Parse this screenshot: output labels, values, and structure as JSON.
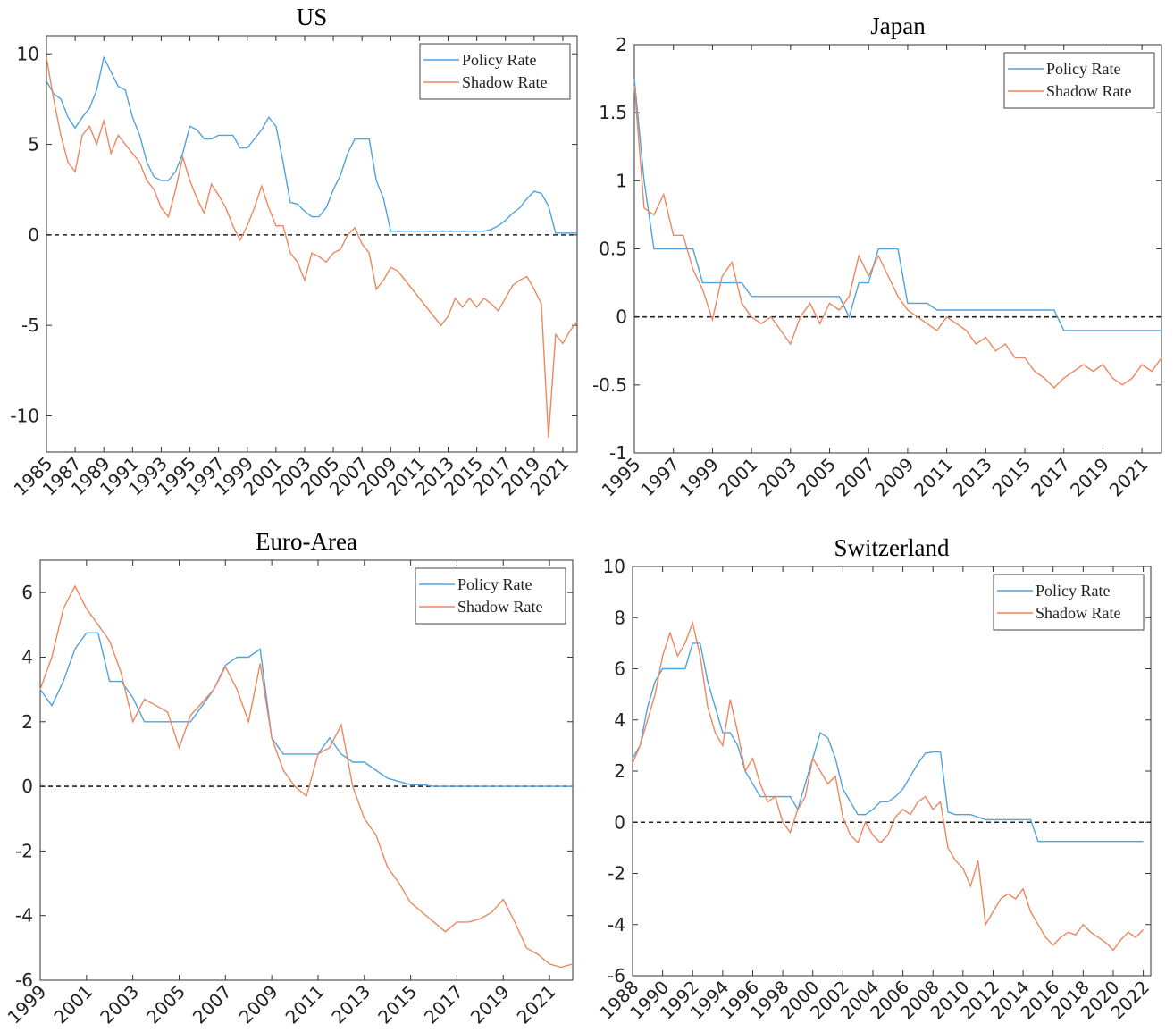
{
  "chart_data": [
    {
      "type": "line",
      "title": "US",
      "x": [
        1985,
        1985.5,
        1986,
        1986.5,
        1987,
        1987.5,
        1988,
        1988.5,
        1989,
        1989.5,
        1990,
        1990.5,
        1991,
        1991.5,
        1992,
        1992.5,
        1993,
        1993.5,
        1994,
        1994.5,
        1995,
        1995.5,
        1996,
        1996.5,
        1997,
        1997.5,
        1998,
        1998.5,
        1999,
        1999.5,
        2000,
        2000.5,
        2001,
        2001.5,
        2002,
        2002.5,
        2003,
        2003.5,
        2004,
        2004.5,
        2005,
        2005.5,
        2006,
        2006.5,
        2007,
        2007.5,
        2008,
        2008.5,
        2009,
        2009.5,
        2010,
        2010.5,
        2011,
        2011.5,
        2012,
        2012.5,
        2013,
        2013.5,
        2014,
        2014.5,
        2015,
        2015.5,
        2016,
        2016.5,
        2017,
        2017.5,
        2018,
        2018.5,
        2019,
        2019.5,
        2020,
        2020.5,
        2021,
        2021.5,
        2022
      ],
      "series": [
        {
          "name": "Policy Rate",
          "color": "#4fa3dc",
          "values": [
            8.5,
            7.8,
            7.5,
            6.5,
            5.9,
            6.5,
            7.0,
            8.0,
            9.8,
            9.0,
            8.2,
            8.0,
            6.5,
            5.5,
            4.0,
            3.2,
            3.0,
            3.0,
            3.5,
            4.5,
            6.0,
            5.8,
            5.3,
            5.3,
            5.5,
            5.5,
            5.5,
            4.8,
            4.8,
            5.3,
            5.8,
            6.5,
            6.0,
            4.0,
            1.8,
            1.7,
            1.3,
            1.0,
            1.0,
            1.5,
            2.5,
            3.3,
            4.5,
            5.3,
            5.3,
            5.3,
            3.0,
            2.0,
            0.2,
            0.2,
            0.2,
            0.2,
            0.2,
            0.2,
            0.2,
            0.2,
            0.2,
            0.2,
            0.2,
            0.2,
            0.2,
            0.2,
            0.3,
            0.5,
            0.8,
            1.2,
            1.5,
            2.0,
            2.4,
            2.3,
            1.6,
            0.1,
            0.1,
            0.1,
            0.1
          ]
        },
        {
          "name": "Shadow Rate",
          "color": "#ec8760",
          "values": [
            9.8,
            7.5,
            5.5,
            4.0,
            3.5,
            5.5,
            6.0,
            5.0,
            6.3,
            4.5,
            5.5,
            5.0,
            4.5,
            4.0,
            3.0,
            2.5,
            1.5,
            1.0,
            2.5,
            4.3,
            3.0,
            2.0,
            1.2,
            2.8,
            2.2,
            1.5,
            0.5,
            -0.3,
            0.5,
            1.5,
            2.7,
            1.5,
            0.5,
            0.5,
            -1.0,
            -1.5,
            -2.5,
            -1.0,
            -1.2,
            -1.5,
            -1.0,
            -0.8,
            0.0,
            0.4,
            -0.5,
            -1.0,
            -3.0,
            -2.5,
            -1.8,
            -2.0,
            -2.5,
            -3.0,
            -3.5,
            -4.0,
            -4.5,
            -5.0,
            -4.5,
            -3.5,
            -4.0,
            -3.5,
            -4.0,
            -3.5,
            -3.8,
            -4.2,
            -3.5,
            -2.8,
            -2.5,
            -2.3,
            -3.0,
            -3.8,
            -11.2,
            -5.5,
            -6.0,
            -5.3,
            -4.8
          ]
        }
      ],
      "xlim": [
        1985,
        2022
      ],
      "xticks": [
        1985,
        1987,
        1989,
        1991,
        1993,
        1995,
        1997,
        1999,
        2001,
        2003,
        2005,
        2007,
        2009,
        2011,
        2013,
        2015,
        2017,
        2019,
        2021
      ],
      "ylim": [
        -12,
        11
      ],
      "yticks": [
        -10,
        -5,
        0,
        5,
        10
      ],
      "reference_line": 0,
      "legend": "upper right"
    },
    {
      "type": "line",
      "title": "Japan",
      "x": [
        1995,
        1995.5,
        1996,
        1996.5,
        1997,
        1997.5,
        1998,
        1998.5,
        1999,
        1999.5,
        2000,
        2000.5,
        2001,
        2001.5,
        2002,
        2002.5,
        2003,
        2003.5,
        2004,
        2004.5,
        2005,
        2005.5,
        2006,
        2006.5,
        2007,
        2007.5,
        2008,
        2008.5,
        2009,
        2009.5,
        2010,
        2010.5,
        2011,
        2011.5,
        2012,
        2012.5,
        2013,
        2013.5,
        2014,
        2014.5,
        2015,
        2015.5,
        2016,
        2016.5,
        2017,
        2017.5,
        2018,
        2018.5,
        2019,
        2019.5,
        2020,
        2020.5,
        2021,
        2021.5,
        2022
      ],
      "series": [
        {
          "name": "Policy Rate",
          "color": "#4fa3dc",
          "values": [
            1.75,
            1.0,
            0.5,
            0.5,
            0.5,
            0.5,
            0.5,
            0.25,
            0.25,
            0.25,
            0.25,
            0.25,
            0.15,
            0.15,
            0.15,
            0.15,
            0.15,
            0.15,
            0.15,
            0.15,
            0.15,
            0.15,
            0.0,
            0.25,
            0.25,
            0.5,
            0.5,
            0.5,
            0.1,
            0.1,
            0.1,
            0.05,
            0.05,
            0.05,
            0.05,
            0.05,
            0.05,
            0.05,
            0.05,
            0.05,
            0.05,
            0.05,
            0.05,
            0.05,
            -0.1,
            -0.1,
            -0.1,
            -0.1,
            -0.1,
            -0.1,
            -0.1,
            -0.1,
            -0.1,
            -0.1,
            -0.1
          ]
        },
        {
          "name": "Shadow Rate",
          "color": "#ec8760",
          "values": [
            1.7,
            0.8,
            0.75,
            0.9,
            0.6,
            0.6,
            0.35,
            0.2,
            -0.02,
            0.3,
            0.4,
            0.1,
            0.0,
            -0.05,
            0.0,
            -0.1,
            -0.2,
            0.0,
            0.1,
            -0.05,
            0.1,
            0.05,
            0.15,
            0.45,
            0.3,
            0.45,
            0.3,
            0.15,
            0.05,
            0.0,
            -0.05,
            -0.1,
            0.0,
            -0.05,
            -0.1,
            -0.2,
            -0.15,
            -0.25,
            -0.2,
            -0.3,
            -0.3,
            -0.4,
            -0.45,
            -0.52,
            -0.45,
            -0.4,
            -0.35,
            -0.4,
            -0.35,
            -0.45,
            -0.5,
            -0.45,
            -0.35,
            -0.4,
            -0.3
          ]
        }
      ],
      "xlim": [
        1995,
        2022
      ],
      "xticks": [
        1995,
        1997,
        1999,
        2001,
        2003,
        2005,
        2007,
        2009,
        2011,
        2013,
        2015,
        2017,
        2019,
        2021
      ],
      "ylim": [
        -1,
        2
      ],
      "yticks": [
        -1,
        -0.5,
        0,
        0.5,
        1,
        1.5,
        2
      ],
      "reference_line": 0,
      "legend": "upper right"
    },
    {
      "type": "line",
      "title": "Euro-Area",
      "x": [
        1999,
        1999.5,
        2000,
        2000.5,
        2001,
        2001.5,
        2002,
        2002.5,
        2003,
        2003.5,
        2004,
        2004.5,
        2005,
        2005.5,
        2006,
        2006.5,
        2007,
        2007.5,
        2008,
        2008.5,
        2009,
        2009.5,
        2010,
        2010.5,
        2011,
        2011.5,
        2012,
        2012.5,
        2013,
        2013.5,
        2014,
        2014.5,
        2015,
        2015.5,
        2016,
        2016.5,
        2017,
        2017.5,
        2018,
        2018.5,
        2019,
        2019.5,
        2020,
        2020.5,
        2021,
        2021.5,
        2022
      ],
      "series": [
        {
          "name": "Policy Rate",
          "color": "#4fa3dc",
          "values": [
            3.0,
            2.5,
            3.25,
            4.25,
            4.75,
            4.75,
            3.25,
            3.25,
            2.75,
            2.0,
            2.0,
            2.0,
            2.0,
            2.0,
            2.5,
            3.0,
            3.75,
            4.0,
            4.0,
            4.25,
            1.5,
            1.0,
            1.0,
            1.0,
            1.0,
            1.5,
            1.0,
            0.75,
            0.75,
            0.5,
            0.25,
            0.15,
            0.05,
            0.05,
            0.0,
            0.0,
            0.0,
            0.0,
            0.0,
            0.0,
            0.0,
            0.0,
            0.0,
            0.0,
            0.0,
            0.0,
            0.0
          ]
        },
        {
          "name": "Shadow Rate",
          "color": "#ec8760",
          "values": [
            3.0,
            4.0,
            5.5,
            6.2,
            5.5,
            5.0,
            4.5,
            3.5,
            2.0,
            2.7,
            2.5,
            2.3,
            1.2,
            2.2,
            2.6,
            3.0,
            3.7,
            3.0,
            2.0,
            3.8,
            1.5,
            0.5,
            0.0,
            -0.3,
            1.0,
            1.2,
            1.9,
            0.0,
            -1.0,
            -1.5,
            -2.5,
            -3.0,
            -3.6,
            -3.9,
            -4.2,
            -4.5,
            -4.2,
            -4.2,
            -4.1,
            -3.9,
            -3.5,
            -4.2,
            -5.0,
            -5.2,
            -5.5,
            -5.6,
            -5.5
          ]
        }
      ],
      "xlim": [
        1999,
        2022
      ],
      "xticks": [
        1999,
        2001,
        2003,
        2005,
        2007,
        2009,
        2011,
        2013,
        2015,
        2017,
        2019,
        2021
      ],
      "ylim": [
        -6,
        7
      ],
      "yticks": [
        -6,
        -4,
        -2,
        0,
        2,
        4,
        6
      ],
      "reference_line": 0,
      "legend": "upper right"
    },
    {
      "type": "line",
      "title": "Switzerland",
      "x": [
        1988,
        1988.5,
        1989,
        1989.5,
        1990,
        1990.5,
        1991,
        1991.5,
        1992,
        1992.5,
        1993,
        1993.5,
        1994,
        1994.5,
        1995,
        1995.5,
        1996,
        1996.5,
        1997,
        1997.5,
        1998,
        1998.5,
        1999,
        1999.5,
        2000,
        2000.5,
        2001,
        2001.5,
        2002,
        2002.5,
        2003,
        2003.5,
        2004,
        2004.5,
        2005,
        2005.5,
        2006,
        2006.5,
        2007,
        2007.5,
        2008,
        2008.5,
        2009,
        2009.5,
        2010,
        2010.5,
        2011,
        2011.5,
        2012,
        2012.5,
        2013,
        2013.5,
        2014,
        2014.5,
        2015,
        2015.5,
        2016,
        2016.5,
        2017,
        2017.5,
        2018,
        2018.5,
        2019,
        2019.5,
        2020,
        2020.5,
        2021,
        2021.5,
        2022
      ],
      "series": [
        {
          "name": "Policy Rate",
          "color": "#4fa3dc",
          "values": [
            2.5,
            3.0,
            4.5,
            5.5,
            6.0,
            6.0,
            6.0,
            6.0,
            7.0,
            7.0,
            5.5,
            4.5,
            3.5,
            3.5,
            3.0,
            2.0,
            1.5,
            1.0,
            1.0,
            1.0,
            1.0,
            1.0,
            0.5,
            1.5,
            2.5,
            3.5,
            3.3,
            2.5,
            1.3,
            0.8,
            0.3,
            0.3,
            0.5,
            0.8,
            0.8,
            1.0,
            1.3,
            1.8,
            2.3,
            2.7,
            2.75,
            2.75,
            0.4,
            0.3,
            0.3,
            0.3,
            0.2,
            0.1,
            0.1,
            0.1,
            0.1,
            0.1,
            0.1,
            0.1,
            -0.75,
            -0.75,
            -0.75,
            -0.75,
            -0.75,
            -0.75,
            -0.75,
            -0.75,
            -0.75,
            -0.75,
            -0.75,
            -0.75,
            -0.75,
            -0.75,
            -0.75
          ]
        },
        {
          "name": "Shadow Rate",
          "color": "#ec8760",
          "values": [
            2.3,
            3.0,
            4.0,
            5.0,
            6.5,
            7.4,
            6.5,
            7.0,
            7.8,
            6.5,
            4.5,
            3.5,
            3.0,
            4.8,
            3.5,
            2.0,
            2.5,
            1.5,
            0.8,
            1.0,
            0.0,
            -0.4,
            0.5,
            1.0,
            2.5,
            2.0,
            1.5,
            1.8,
            0.2,
            -0.5,
            -0.8,
            0.0,
            -0.5,
            -0.8,
            -0.5,
            0.2,
            0.5,
            0.3,
            0.8,
            1.0,
            0.5,
            0.8,
            -1.0,
            -1.5,
            -1.8,
            -2.5,
            -1.5,
            -4.0,
            -3.5,
            -3.0,
            -2.8,
            -3.0,
            -2.6,
            -3.5,
            -4.0,
            -4.5,
            -4.8,
            -4.5,
            -4.3,
            -4.4,
            -4.0,
            -4.3,
            -4.5,
            -4.7,
            -5.0,
            -4.6,
            -4.3,
            -4.5,
            -4.2
          ]
        }
      ],
      "xlim": [
        1988,
        2022.5
      ],
      "xticks": [
        1988,
        1990,
        1992,
        1994,
        1996,
        1998,
        2000,
        2002,
        2004,
        2006,
        2008,
        2010,
        2012,
        2014,
        2016,
        2018,
        2020,
        2022
      ],
      "ylim": [
        -6,
        10
      ],
      "yticks": [
        -6,
        -4,
        -2,
        0,
        2,
        4,
        6,
        8,
        10
      ],
      "reference_line": 0,
      "legend": "upper right"
    }
  ]
}
